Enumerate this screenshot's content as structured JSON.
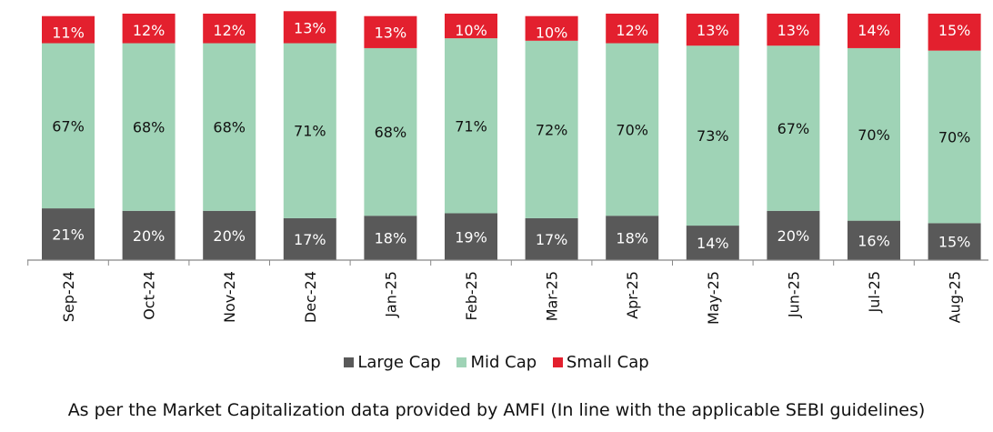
{
  "chart_data": {
    "type": "bar",
    "stacked": true,
    "categories": [
      "Sep-24",
      "Oct-24",
      "Nov-24",
      "Dec-24",
      "Jan-25",
      "Feb-25",
      "Mar-25",
      "Apr-25",
      "May-25",
      "Jun-25",
      "Jul-25",
      "Aug-25"
    ],
    "series": [
      {
        "name": "Large Cap",
        "color": "#595959",
        "values": [
          21,
          20,
          20,
          17,
          18,
          19,
          17,
          18,
          14,
          20,
          16,
          15
        ]
      },
      {
        "name": "Mid Cap",
        "color": "#9fd3b6",
        "values": [
          67,
          68,
          68,
          71,
          68,
          71,
          72,
          70,
          73,
          67,
          70,
          70
        ]
      },
      {
        "name": "Small Cap",
        "color": "#e3202e",
        "values": [
          11,
          12,
          12,
          13,
          13,
          10,
          10,
          12,
          13,
          13,
          14,
          15
        ]
      }
    ],
    "value_format": "{v}%",
    "legend_position": "bottom",
    "grid": false,
    "footnote": "As per the Market Capitalization data provided by AMFI (In line with the applicable SEBI guidelines)"
  }
}
